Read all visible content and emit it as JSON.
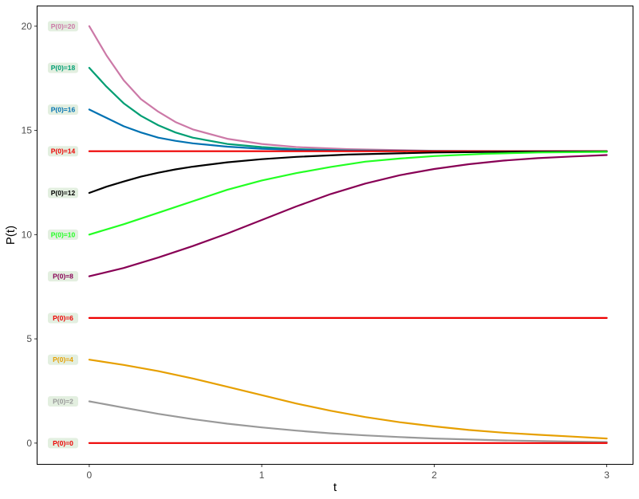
{
  "chart_data": {
    "type": "line",
    "xlabel": "t",
    "ylabel": "P(t)",
    "xlim": [
      -0.3,
      3.15
    ],
    "ylim": [
      -1.0,
      20.95
    ],
    "xticks": [
      0,
      1,
      2,
      3
    ],
    "yticks": [
      0,
      5,
      10,
      15,
      20
    ],
    "grid": false,
    "label_background": "#e3efe0",
    "series": [
      {
        "label": "P(0)=20",
        "color": "#cc79a7",
        "x": [
          0,
          0.1,
          0.2,
          0.3,
          0.4,
          0.5,
          0.6,
          0.8,
          1.0,
          1.2,
          1.5,
          2.0,
          2.5,
          3.0
        ],
        "y": [
          20,
          18.6,
          17.4,
          16.5,
          15.9,
          15.4,
          15.05,
          14.6,
          14.35,
          14.2,
          14.1,
          14.02,
          14.0,
          14.0
        ]
      },
      {
        "label": "P(0)=18",
        "color": "#009e73",
        "x": [
          0,
          0.1,
          0.2,
          0.3,
          0.4,
          0.5,
          0.6,
          0.8,
          1.0,
          1.2,
          1.5,
          2.0,
          2.5,
          3.0
        ],
        "y": [
          18,
          17.1,
          16.3,
          15.7,
          15.25,
          14.9,
          14.65,
          14.35,
          14.2,
          14.1,
          14.04,
          14.01,
          14.0,
          14.0
        ]
      },
      {
        "label": "P(0)=16",
        "color": "#0072b2",
        "x": [
          0,
          0.1,
          0.2,
          0.3,
          0.4,
          0.5,
          0.6,
          0.8,
          1.0,
          1.2,
          1.5,
          2.0,
          2.5,
          3.0
        ],
        "y": [
          16,
          15.6,
          15.2,
          14.9,
          14.65,
          14.5,
          14.38,
          14.22,
          14.12,
          14.07,
          14.03,
          14.01,
          14.0,
          14.0
        ]
      },
      {
        "label": "P(0)=14",
        "color": "#ee0000",
        "x": [
          0,
          3.0
        ],
        "y": [
          14,
          14
        ]
      },
      {
        "label": "P(0)=12",
        "color": "#000000",
        "x": [
          0,
          0.1,
          0.2,
          0.3,
          0.4,
          0.5,
          0.6,
          0.8,
          1.0,
          1.2,
          1.5,
          2.0,
          2.5,
          3.0
        ],
        "y": [
          12,
          12.3,
          12.55,
          12.78,
          12.97,
          13.13,
          13.26,
          13.47,
          13.62,
          13.73,
          13.84,
          13.94,
          13.98,
          13.99
        ]
      },
      {
        "label": "P(0)=10",
        "color": "#22ff22",
        "x": [
          0,
          0.2,
          0.4,
          0.6,
          0.8,
          1.0,
          1.2,
          1.4,
          1.6,
          1.8,
          2.0,
          2.3,
          2.6,
          3.0
        ],
        "y": [
          10,
          10.5,
          11.05,
          11.6,
          12.15,
          12.6,
          12.95,
          13.25,
          13.5,
          13.65,
          13.77,
          13.88,
          13.94,
          13.97
        ]
      },
      {
        "label": "P(0)=8",
        "color": "#880055",
        "x": [
          0,
          0.2,
          0.4,
          0.6,
          0.8,
          1.0,
          1.2,
          1.4,
          1.6,
          1.8,
          2.0,
          2.2,
          2.4,
          2.6,
          2.8,
          3.0
        ],
        "y": [
          8,
          8.4,
          8.9,
          9.45,
          10.05,
          10.7,
          11.35,
          11.95,
          12.45,
          12.85,
          13.15,
          13.38,
          13.55,
          13.67,
          13.75,
          13.82
        ]
      },
      {
        "label": "P(0)=6",
        "color": "#ee0000",
        "x": [
          0,
          3.0
        ],
        "y": [
          6,
          6
        ]
      },
      {
        "label": "P(0)=4",
        "color": "#e69f00",
        "x": [
          0,
          0.2,
          0.4,
          0.6,
          0.8,
          1.0,
          1.2,
          1.4,
          1.6,
          1.8,
          2.0,
          2.2,
          2.4,
          2.6,
          2.8,
          3.0
        ],
        "y": [
          4,
          3.75,
          3.45,
          3.1,
          2.7,
          2.3,
          1.9,
          1.55,
          1.25,
          1.0,
          0.8,
          0.63,
          0.5,
          0.4,
          0.31,
          0.22
        ]
      },
      {
        "label": "P(0)=2",
        "color": "#999999",
        "x": [
          0,
          0.2,
          0.4,
          0.6,
          0.8,
          1.0,
          1.2,
          1.4,
          1.6,
          1.8,
          2.0,
          2.4,
          2.8,
          3.0
        ],
        "y": [
          2,
          1.7,
          1.4,
          1.15,
          0.93,
          0.75,
          0.6,
          0.47,
          0.37,
          0.29,
          0.22,
          0.13,
          0.07,
          0.05
        ]
      },
      {
        "label": "P(0)=0",
        "color": "#ee0000",
        "x": [
          0,
          3.0
        ],
        "y": [
          0,
          0
        ]
      }
    ]
  }
}
